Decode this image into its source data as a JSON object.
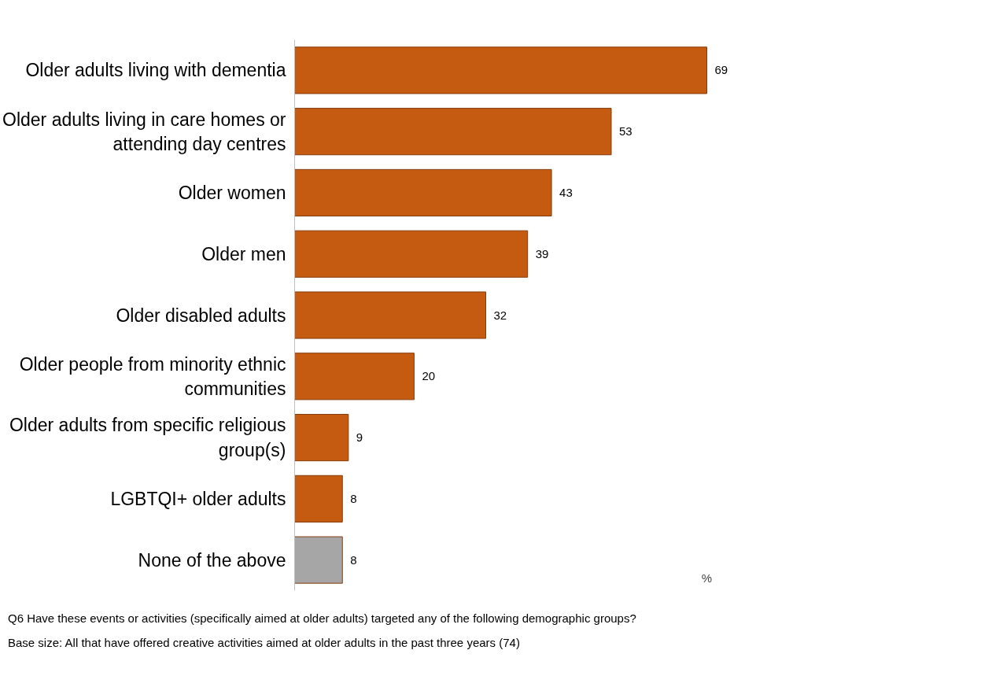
{
  "chart_data": {
    "type": "bar",
    "orientation": "horizontal",
    "data_labels": true,
    "tick_labels": "y",
    "categories": [
      "Older adults living with dementia",
      "Older adults living in care homes or attending day centres",
      "Older women",
      "Older men",
      "Older disabled adults",
      "Older people from minority ethnic communities",
      "Older adults from specific religious group(s)",
      "LGBTQI+ older adults",
      "None of the above"
    ],
    "values": [
      69,
      53,
      43,
      39,
      32,
      20,
      9,
      8,
      8
    ],
    "colors": [
      "#c55a11",
      "#c55a11",
      "#c55a11",
      "#c55a11",
      "#c55a11",
      "#c55a11",
      "#c55a11",
      "#c55a11",
      "#a6a6a6"
    ],
    "annotations": [
      "%",
      "Q6  Have these events or activities (specifically aimed at older adults) targeted any of the following demographic groups?",
      "Base size: All that have offered creative activities aimed at older adults in the past three years (74)"
    ]
  }
}
